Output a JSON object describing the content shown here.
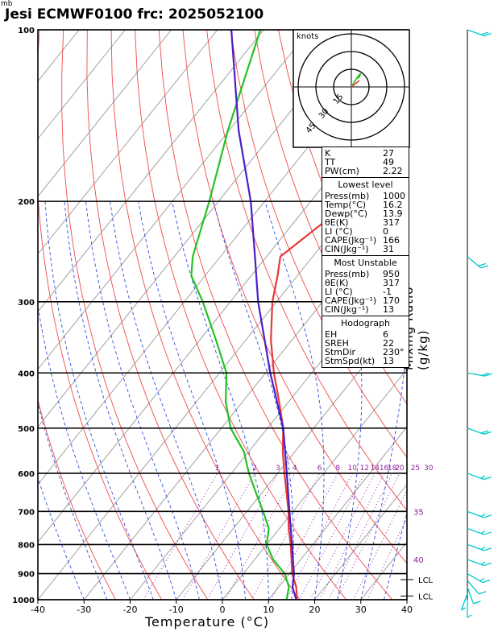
{
  "header": {
    "title": "Jesi ECMWF0100  frc: 2025052100",
    "pressure_unit": "mb",
    "x_axis_label": "Temperature (°C)",
    "mixing_ratio_label": "Mixing Ratio (g/kg)"
  },
  "hodograph": {
    "unit_label": "knots",
    "ring_labels": [
      "15",
      "30",
      "45"
    ]
  },
  "indices": {
    "general": [
      {
        "label": "K",
        "value": "27"
      },
      {
        "label": "TT",
        "value": "49"
      },
      {
        "label": "PW(cm)",
        "value": "2.22"
      }
    ],
    "lowest_title": "Lowest level",
    "lowest": [
      {
        "label": "Press(mb)",
        "value": "1000"
      },
      {
        "label": "Temp(°C)",
        "value": "16.2"
      },
      {
        "label": "Dewp(°C)",
        "value": "13.9"
      },
      {
        "label": "θE(K)",
        "value": "317"
      },
      {
        "label": "LI (°C)",
        "value": "0"
      },
      {
        "label": "CAPE(Jkg⁻¹)",
        "value": "166"
      },
      {
        "label": "CIN(Jkg⁻¹)",
        "value": "31"
      }
    ],
    "unstable_title": "Most Unstable",
    "unstable": [
      {
        "label": "Press(mb)",
        "value": "950"
      },
      {
        "label": "θE(K)",
        "value": "317"
      },
      {
        "label": "LI (°C)",
        "value": "-1"
      },
      {
        "label": "CAPE(Jkg⁻¹)",
        "value": "170"
      },
      {
        "label": "CIN(Jkg⁻¹)",
        "value": "13"
      }
    ],
    "hodo_title": "Hodograph",
    "hodo": [
      {
        "label": "EH",
        "value": "6"
      },
      {
        "label": "SREH",
        "value": "22"
      },
      {
        "label": "StmDir",
        "value": "230°"
      },
      {
        "label": "StmSpd(kt)",
        "value": "13"
      }
    ]
  },
  "chart_data": {
    "type": "line",
    "subtype": "skew-T log-p",
    "title": "Jesi ECMWF0100  frc: 2025052100",
    "xlabel": "Temperature (°C)",
    "ylabel": "mb",
    "xlim": [
      -40,
      40
    ],
    "ylim": [
      1000,
      100
    ],
    "y_scale": "log",
    "x_ticks": [
      -40,
      -30,
      -20,
      -10,
      0,
      10,
      20,
      30,
      40
    ],
    "pressure_levels": [
      100,
      200,
      300,
      400,
      500,
      600,
      700,
      800,
      900,
      1000
    ],
    "mixing_ratio_labels": [
      "1",
      "2",
      "3",
      "4",
      "6",
      "8",
      "10",
      "12",
      "14",
      "16",
      "18",
      "20",
      "25",
      "30"
    ],
    "theta_e_labels": [
      "35",
      "40"
    ],
    "lcl_labels": [
      "LCL",
      "LCL"
    ],
    "series": [
      {
        "name": "temperature",
        "color": "#e83a3a",
        "p": [
          1000,
          950,
          900,
          850,
          800,
          750,
          700,
          650,
          600,
          550,
          500,
          450,
          400,
          350,
          300,
          270,
          250,
          220,
          200,
          170,
          150,
          130,
          115,
          100
        ],
        "t": [
          16.2,
          13.8,
          10.6,
          8.0,
          5.2,
          2.0,
          -1.0,
          -4.6,
          -8.5,
          -12.6,
          -16.6,
          -22.0,
          -28.2,
          -34.6,
          -40.9,
          -44.3,
          -47.0,
          -43.8,
          -40.5,
          -34.5,
          -29.6,
          -24.3,
          -19.4,
          -14.3
        ]
      },
      {
        "name": "dewpoint",
        "color": "#22c422",
        "p": [
          1000,
          950,
          900,
          850,
          800,
          750,
          700,
          650,
          600,
          550,
          500,
          450,
          400,
          350,
          300,
          270,
          250,
          200,
          150,
          100
        ],
        "t": [
          13.9,
          12.2,
          9.0,
          4.0,
          0.0,
          -2.3,
          -6.5,
          -11.2,
          -16.2,
          -21.0,
          -28.0,
          -33.6,
          -38.5,
          -46.5,
          -56.0,
          -63.0,
          -66.0,
          -72.0,
          -80.3,
          -90.7
        ]
      },
      {
        "name": "parcel",
        "color": "#4b1ec8",
        "p": [
          1000,
          950,
          900,
          850,
          800,
          700,
          600,
          500,
          400,
          300,
          250,
          200,
          150,
          100
        ],
        "t": [
          16.0,
          13.0,
          11.0,
          8.3,
          5.5,
          -0.8,
          -8.0,
          -16.6,
          -29.0,
          -44.0,
          -52.5,
          -63.0,
          -78.0,
          -97.0
        ]
      }
    ],
    "wind_barbs": [
      {
        "p": 1000,
        "dir": 180,
        "spd": 5
      },
      {
        "p": 975,
        "dir": 160,
        "spd": 5
      },
      {
        "p": 950,
        "dir": 200,
        "spd": 10
      },
      {
        "p": 925,
        "dir": 220,
        "spd": 10
      },
      {
        "p": 900,
        "dir": 240,
        "spd": 15
      },
      {
        "p": 850,
        "dir": 250,
        "spd": 15
      },
      {
        "p": 800,
        "dir": 250,
        "spd": 15
      },
      {
        "p": 750,
        "dir": 250,
        "spd": 15
      },
      {
        "p": 700,
        "dir": 250,
        "spd": 15
      },
      {
        "p": 600,
        "dir": 250,
        "spd": 15
      },
      {
        "p": 500,
        "dir": 250,
        "spd": 20
      },
      {
        "p": 400,
        "dir": 260,
        "spd": 20
      },
      {
        "p": 250,
        "dir": 230,
        "spd": 20
      },
      {
        "p": 100,
        "dir": 250,
        "spd": 20
      }
    ],
    "hodograph_points": [
      {
        "u": 0.0,
        "v": 0.0
      },
      {
        "u": 2.5,
        "v": 4.0
      },
      {
        "u": 5.0,
        "v": 8.0
      },
      {
        "u": 6.5,
        "v": 10.0
      },
      {
        "u": 8.0,
        "v": 11.5
      },
      {
        "u": 6.5,
        "v": 8.0
      },
      {
        "u": 4.0,
        "v": 7.0
      }
    ]
  }
}
